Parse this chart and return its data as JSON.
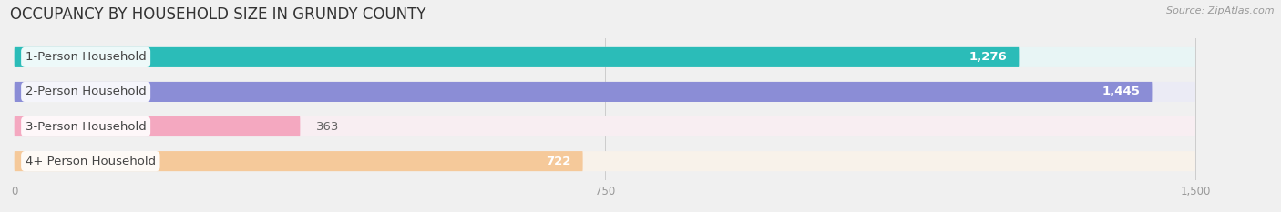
{
  "title": "OCCUPANCY BY HOUSEHOLD SIZE IN GRUNDY COUNTY",
  "source": "Source: ZipAtlas.com",
  "categories": [
    "1-Person Household",
    "2-Person Household",
    "3-Person Household",
    "4+ Person Household"
  ],
  "values": [
    1276,
    1445,
    363,
    722
  ],
  "bar_colors": [
    "#2bbcb8",
    "#8b8dd6",
    "#f4a8c0",
    "#f5c99a"
  ],
  "bar_bg_colors": [
    "#e8f5f5",
    "#ebebf5",
    "#f8eef2",
    "#f8f2ea"
  ],
  "value_text_colors": [
    "white",
    "white",
    "#888888",
    "#888888"
  ],
  "xlim": [
    0,
    1500
  ],
  "xticks": [
    0,
    750,
    1500
  ],
  "label_fontsize": 9.5,
  "value_fontsize": 9.5,
  "title_fontsize": 12,
  "background_color": "#f0f0f0",
  "bar_height": 0.58,
  "bar_gap": 0.42
}
